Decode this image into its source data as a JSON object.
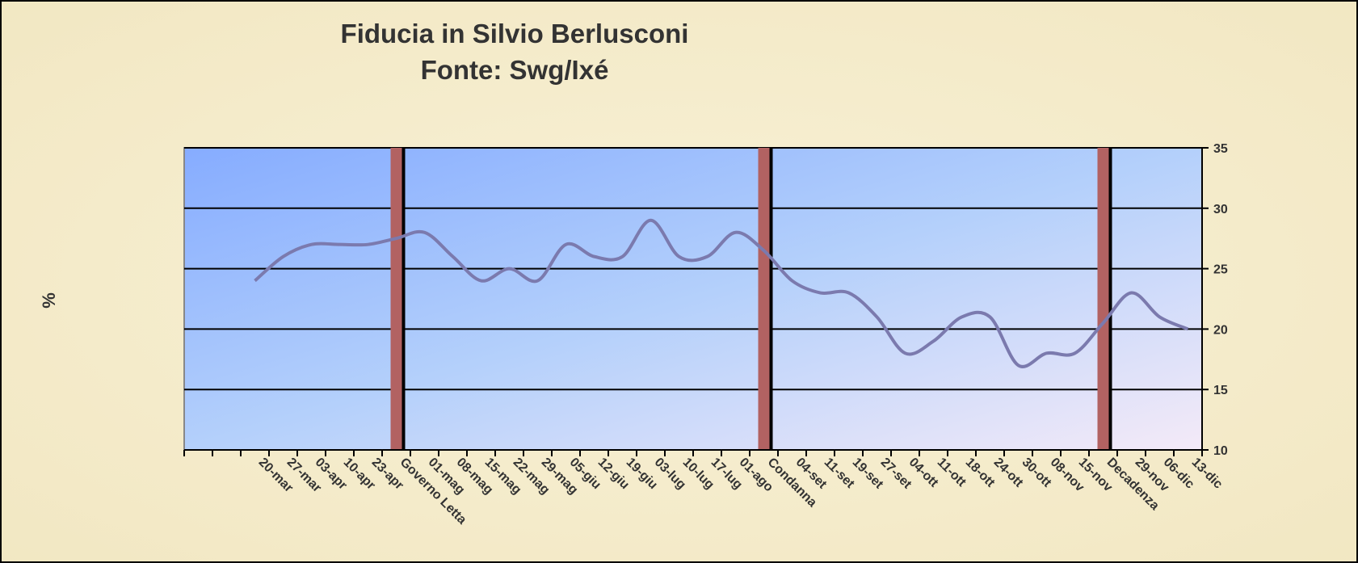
{
  "chart_data": {
    "type": "line",
    "title": "Fiducia in Silvio Berlusconi",
    "subtitle": "Fonte: Swg/Ixé",
    "y_label": "%",
    "categories": [
      null,
      null,
      "20-mar",
      "27-mar",
      "03-apr",
      "10-apr",
      "23-apr",
      "Governo Letta",
      "01-mag",
      "08-mag",
      "15-mag",
      "22-mag",
      "29-mag",
      "05-giu",
      "12-giu",
      "19-giu",
      "03-lug",
      "10-lug",
      "17-lug",
      "01-ago",
      "Condanna",
      "04-set",
      "11-set",
      "19-set",
      "27-set",
      "04-ott",
      "11-ott",
      "18-ott",
      "24-ott",
      "30-ott",
      "08-nov",
      "15-nov",
      "Decadenza",
      "29-nov",
      "06-dic",
      "13-dic"
    ],
    "values": [
      null,
      null,
      24,
      26,
      27,
      27,
      27,
      27.5,
      28,
      26,
      24,
      25,
      24,
      27,
      26,
      26,
      29,
      26,
      26,
      28,
      26.5,
      24,
      23,
      23,
      21,
      18,
      19,
      21,
      21,
      17,
      18,
      18,
      20.5,
      23,
      21,
      20
    ],
    "color": "#7b7aae",
    "event_categories": [
      7,
      20,
      32
    ],
    "event_color": "#b26262",
    "ylim": [
      10,
      35
    ],
    "yticks": [
      10,
      15,
      20,
      25,
      30,
      35
    ],
    "y_axis_side": "right",
    "grid": true
  }
}
